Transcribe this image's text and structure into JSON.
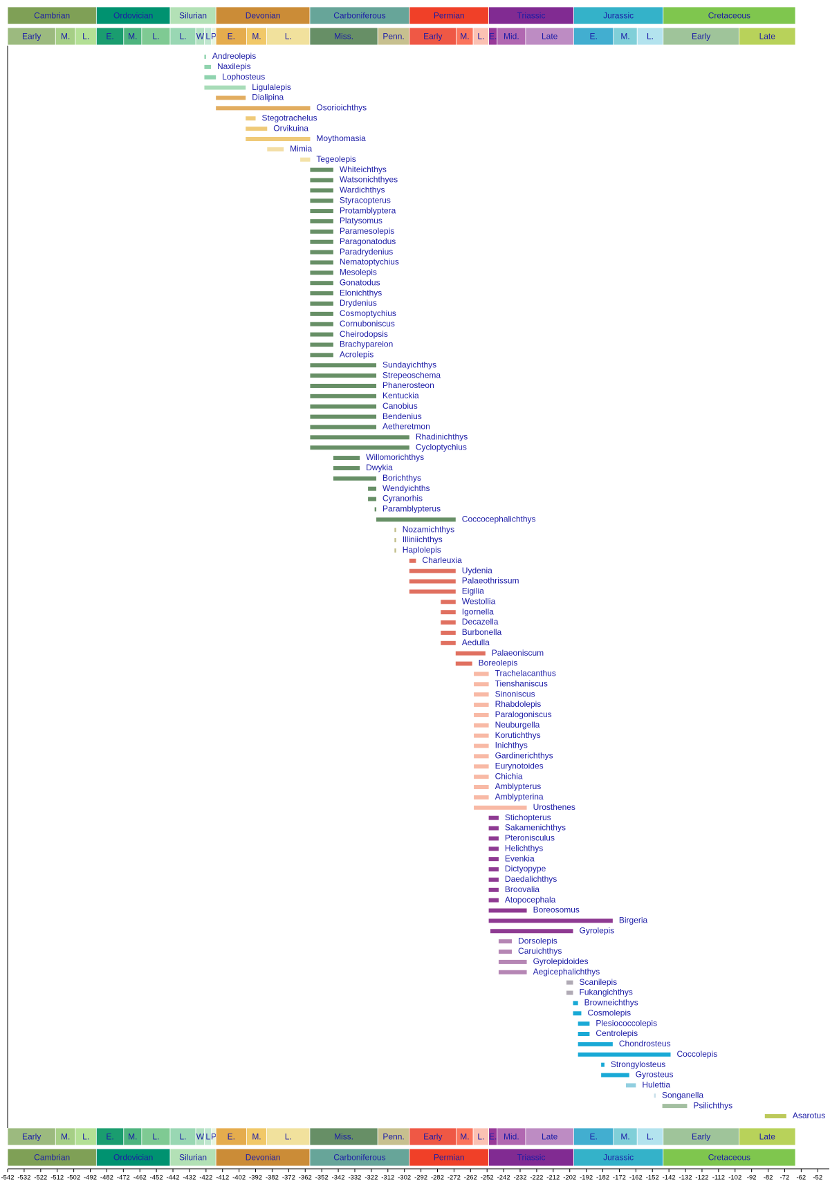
{
  "chart_data": {
    "type": "range",
    "categories": [
      "Andreolepis",
      "Naxilepis",
      "Lophosteus",
      "Ligulalepis",
      "Dialipina",
      "Osorioichthys",
      "Stegotrachelus",
      "Orvikuina",
      "Moythomasia",
      "Mimia",
      "Tegeolepis",
      "Whiteichthys",
      "Watsonichthyes",
      "Wardichthys",
      "Styracopterus",
      "Protamblyptera",
      "Platysomus",
      "Paramesolepis",
      "Paragonatodus",
      "Paradrydenius",
      "Nematoptychius",
      "Mesolepis",
      "Gonatodus",
      "Elonichthys",
      "Drydenius",
      "Cosmoptychius",
      "Cornuboniscus",
      "Cheirodopsis",
      "Brachypareion",
      "Acrolepis",
      "Sundayichthys",
      "Strepeoschema",
      "Phanerosteon",
      "Kentuckia",
      "Canobius",
      "Bendenius",
      "Aetheretmon",
      "Rhadinichthys",
      "Cycloptychius",
      "Willomorichthys",
      "Dwykia",
      "Borichthys",
      "Wendyichths",
      "Cyranorhis",
      "Paramblypterus",
      "Coccocephalichthys",
      "Nozamichthys",
      "Illiniichthys",
      "Haplolepis",
      "Charleuxia",
      "Uydenia",
      "Palaeothrissum",
      "Eigilia",
      "Westollia",
      "Igornella",
      "Decazella",
      "Burbonella",
      "Aedulla",
      "Palaeoniscum",
      "Boreolepis",
      "Trachelacanthus",
      "Tienshaniscus",
      "Sinoniscus",
      "Rhabdolepis",
      "Paralogoniscus",
      "Neuburgella",
      "Korutichthys",
      "Inichthys",
      "Gardinerichthys",
      "Eurynotoides",
      "Chichia",
      "Amblypterus",
      "Amblypterina",
      "Urosthenes",
      "Stichopterus",
      "Sakamenichthys",
      "Pteronisculus",
      "Helichthys",
      "Evenkia",
      "Dictyopype",
      "Daedalichthys",
      "Broovalia",
      "Atopocephala",
      "Boreosomus",
      "Birgeria",
      "Gyrolepis",
      "Dorsolepis",
      "Caruichthys",
      "Gyrolepidoides",
      "Aegicephalichthys",
      "Scanilepis",
      "Fukangichthys",
      "Browneichthys",
      "Cosmolepis",
      "Plesiococcolepis",
      "Centrolepis",
      "Chondrosteus",
      "Coccolepis",
      "Strongylosteus",
      "Gyrosteus",
      "Hulettia",
      "Songanella",
      "Psilichthys",
      "Asarotus"
    ],
    "start": [
      -423,
      -423,
      -423,
      -423,
      -416,
      -416,
      -398,
      -398,
      -398,
      -385,
      -365,
      -359,
      -359,
      -359,
      -359,
      -359,
      -359,
      -359,
      -359,
      -359,
      -359,
      -359,
      -359,
      -359,
      -359,
      -359,
      -359,
      -359,
      -359,
      -359,
      -359,
      -359,
      -359,
      -359,
      -359,
      -359,
      -359,
      -359,
      -359,
      -345,
      -345,
      -345,
      -324,
      -324,
      -320,
      -319,
      -308,
      -308,
      -308,
      -299,
      -299,
      -299,
      -299,
      -280,
      -280,
      -280,
      -280,
      -280,
      -271,
      -271,
      -260,
      -260,
      -260,
      -260,
      -260,
      -260,
      -260,
      -260,
      -260,
      -260,
      -260,
      -260,
      -260,
      -260,
      -251,
      -251,
      -251,
      -251,
      -251,
      -251,
      -251,
      -251,
      -251,
      -251,
      -251,
      -250,
      -245,
      -245,
      -245,
      -245,
      -204,
      -204,
      -200,
      -200,
      -197,
      -197,
      -197,
      -197,
      -183,
      -183,
      -168,
      -151,
      -146,
      -84
    ],
    "end": [
      -422,
      -419,
      -416,
      -398,
      -398,
      -359,
      -392,
      -385,
      -359,
      -375,
      -359,
      -345,
      -345,
      -345,
      -345,
      -345,
      -345,
      -345,
      -345,
      -345,
      -345,
      -345,
      -345,
      -345,
      -345,
      -345,
      -345,
      -345,
      -345,
      -345,
      -319,
      -319,
      -319,
      -319,
      -319,
      -319,
      -319,
      -299,
      -299,
      -329,
      -329,
      -319,
      -319,
      -319,
      -319,
      -271,
      -307,
      -307,
      -307,
      -295,
      -271,
      -271,
      -271,
      -271,
      -271,
      -271,
      -271,
      -271,
      -253,
      -261,
      -251,
      -251,
      -251,
      -251,
      -251,
      -251,
      -251,
      -251,
      -251,
      -251,
      -251,
      -251,
      -251,
      -228,
      -245,
      -245,
      -245,
      -245,
      -245,
      -245,
      -245,
      -245,
      -245,
      -228,
      -176,
      -200,
      -237,
      -237,
      -228,
      -228,
      -200,
      -200,
      -197,
      -195,
      -190,
      -190,
      -176,
      -141,
      -181,
      -166,
      -162,
      -150,
      -131,
      -71
    ],
    "colors": [
      "#8fd3ae",
      "#8fd3ae",
      "#8fd3ae",
      "#a8dcb8",
      "#e2ad60",
      "#e2ad60",
      "#efca78",
      "#efca78",
      "#efca78",
      "#f3dea6",
      "#f3e2a8",
      "#678f66",
      "#678f66",
      "#678f66",
      "#678f66",
      "#678f66",
      "#678f66",
      "#678f66",
      "#678f66",
      "#678f66",
      "#678f66",
      "#678f66",
      "#678f66",
      "#678f66",
      "#678f66",
      "#678f66",
      "#678f66",
      "#678f66",
      "#678f66",
      "#678f66",
      "#678f66",
      "#678f66",
      "#678f66",
      "#678f66",
      "#678f66",
      "#678f66",
      "#678f66",
      "#678f66",
      "#678f66",
      "#678f66",
      "#678f66",
      "#678f66",
      "#678f66",
      "#678f66",
      "#678f66",
      "#678f66",
      "#c2bf8a",
      "#c2bf8a",
      "#c2bf8a",
      "#e07060",
      "#e07060",
      "#e07060",
      "#e07060",
      "#e07060",
      "#e07060",
      "#e07060",
      "#e07060",
      "#e07060",
      "#e07060",
      "#e07060",
      "#f8b9a5",
      "#f8b9a5",
      "#f8b9a5",
      "#f8b9a5",
      "#f8b9a5",
      "#f8b9a5",
      "#f8b9a5",
      "#f8b9a5",
      "#f8b9a5",
      "#f8b9a5",
      "#f8b9a5",
      "#f8b9a5",
      "#f8b9a5",
      "#f8b9a5",
      "#8e3a92",
      "#8e3a92",
      "#8e3a92",
      "#8e3a92",
      "#8e3a92",
      "#8e3a92",
      "#8e3a92",
      "#8e3a92",
      "#8e3a92",
      "#8e3a92",
      "#8e3a92",
      "#8e3a92",
      "#b586b4",
      "#b586b4",
      "#b586b4",
      "#b586b4",
      "#b0aab5",
      "#b0aab5",
      "#19a9d6",
      "#19a9d6",
      "#19a9d6",
      "#19a9d6",
      "#19a9d6",
      "#19a9d6",
      "#19a9d6",
      "#19a9d6",
      "#92cfe0",
      "#c9e0ea",
      "#a3bfa0",
      "#bcc95a"
    ],
    "periods": [
      {
        "name": "Cambrian",
        "start": -542,
        "end": -488.3,
        "color": "#7fa056"
      },
      {
        "name": "Ordovician",
        "start": -488.3,
        "end": -443.7,
        "color": "#009270"
      },
      {
        "name": "Silurian",
        "start": -443.7,
        "end": -416,
        "color": "#b3e1b6"
      },
      {
        "name": "Devonian",
        "start": -416,
        "end": -359.2,
        "color": "#cb8c37"
      },
      {
        "name": "Carboniferous",
        "start": -359.2,
        "end": -299,
        "color": "#67a599"
      },
      {
        "name": "Permian",
        "start": -299,
        "end": -251,
        "color": "#f04028"
      },
      {
        "name": "Triassic",
        "start": -251,
        "end": -199.6,
        "color": "#812b92"
      },
      {
        "name": "Jurassic",
        "start": -199.6,
        "end": -145.5,
        "color": "#34b2c9"
      },
      {
        "name": "Cretaceous",
        "start": -145.5,
        "end": -65.5,
        "color": "#7fc64e"
      }
    ],
    "epochs": [
      {
        "name": "Early",
        "start": -542,
        "end": -513,
        "color": "#9cba7f"
      },
      {
        "name": "M.",
        "start": -513,
        "end": -501,
        "color": "#a6cf86"
      },
      {
        "name": "L.",
        "start": -501,
        "end": -488.3,
        "color": "#b3e095"
      },
      {
        "name": "E.",
        "start": -488.3,
        "end": -471.8,
        "color": "#1a9d6f"
      },
      {
        "name": "M.",
        "start": -471.8,
        "end": -460.9,
        "color": "#4db47e"
      },
      {
        "name": "L.",
        "start": -460.9,
        "end": -443.7,
        "color": "#7fca93"
      },
      {
        "name": "L.",
        "start": -443.7,
        "end": -428.2,
        "color": "#99d7b3"
      },
      {
        "name": "W",
        "start": -428.2,
        "end": -422.9,
        "color": "#b3e1c2"
      },
      {
        "name": "L",
        "start": -422.9,
        "end": -418.7,
        "color": "#bfe6cf"
      },
      {
        "name": "P",
        "start": -418.7,
        "end": -416,
        "color": "#e6f5e1"
      },
      {
        "name": "E.",
        "start": -416,
        "end": -397.5,
        "color": "#e5ac4d"
      },
      {
        "name": "M.",
        "start": -397.5,
        "end": -385.3,
        "color": "#f1c868"
      },
      {
        "name": "L.",
        "start": -385.3,
        "end": -359.2,
        "color": "#f1e19d"
      },
      {
        "name": "Miss.",
        "start": -359.2,
        "end": -318.1,
        "color": "#678f66"
      },
      {
        "name": "Penn.",
        "start": -318.1,
        "end": -299,
        "color": "#c7c08f"
      },
      {
        "name": "Early",
        "start": -299,
        "end": -270.6,
        "color": "#ef5845"
      },
      {
        "name": "M.",
        "start": -270.6,
        "end": -260.4,
        "color": "#fb745c"
      },
      {
        "name": "L.",
        "start": -260.4,
        "end": -251,
        "color": "#fbc1b3"
      },
      {
        "name": "E.",
        "start": -251,
        "end": -245.9,
        "color": "#983999"
      },
      {
        "name": "Mid.",
        "start": -245.9,
        "end": -228.7,
        "color": "#b168b1"
      },
      {
        "name": "Late",
        "start": -228.7,
        "end": -199.6,
        "color": "#bd8cc3"
      },
      {
        "name": "E.",
        "start": -199.6,
        "end": -175.6,
        "color": "#42aed0"
      },
      {
        "name": "M.",
        "start": -175.6,
        "end": -161.2,
        "color": "#80cfd8"
      },
      {
        "name": "L.",
        "start": -161.2,
        "end": -145.5,
        "color": "#b3e3ee"
      },
      {
        "name": "Early",
        "start": -145.5,
        "end": -99.6,
        "color": "#9fc49a"
      },
      {
        "name": "Late",
        "start": -99.6,
        "end": -65.5,
        "color": "#b8d25a"
      }
    ],
    "xlim": [
      -542,
      -45
    ],
    "xticks": [
      -542,
      -532,
      -522,
      -512,
      -502,
      -492,
      -482,
      -472,
      -462,
      -452,
      -442,
      -432,
      -422,
      -412,
      -402,
      -392,
      -382,
      -372,
      -362,
      -352,
      -342,
      -332,
      -322,
      -312,
      -302,
      -292,
      -282,
      -272,
      -262,
      -252,
      -242,
      -232,
      -222,
      -212,
      -202,
      -192,
      -182,
      -172,
      -162,
      -152,
      -142,
      -132,
      -122,
      -112,
      -102,
      -92,
      -82,
      -72,
      -62,
      -52
    ]
  }
}
